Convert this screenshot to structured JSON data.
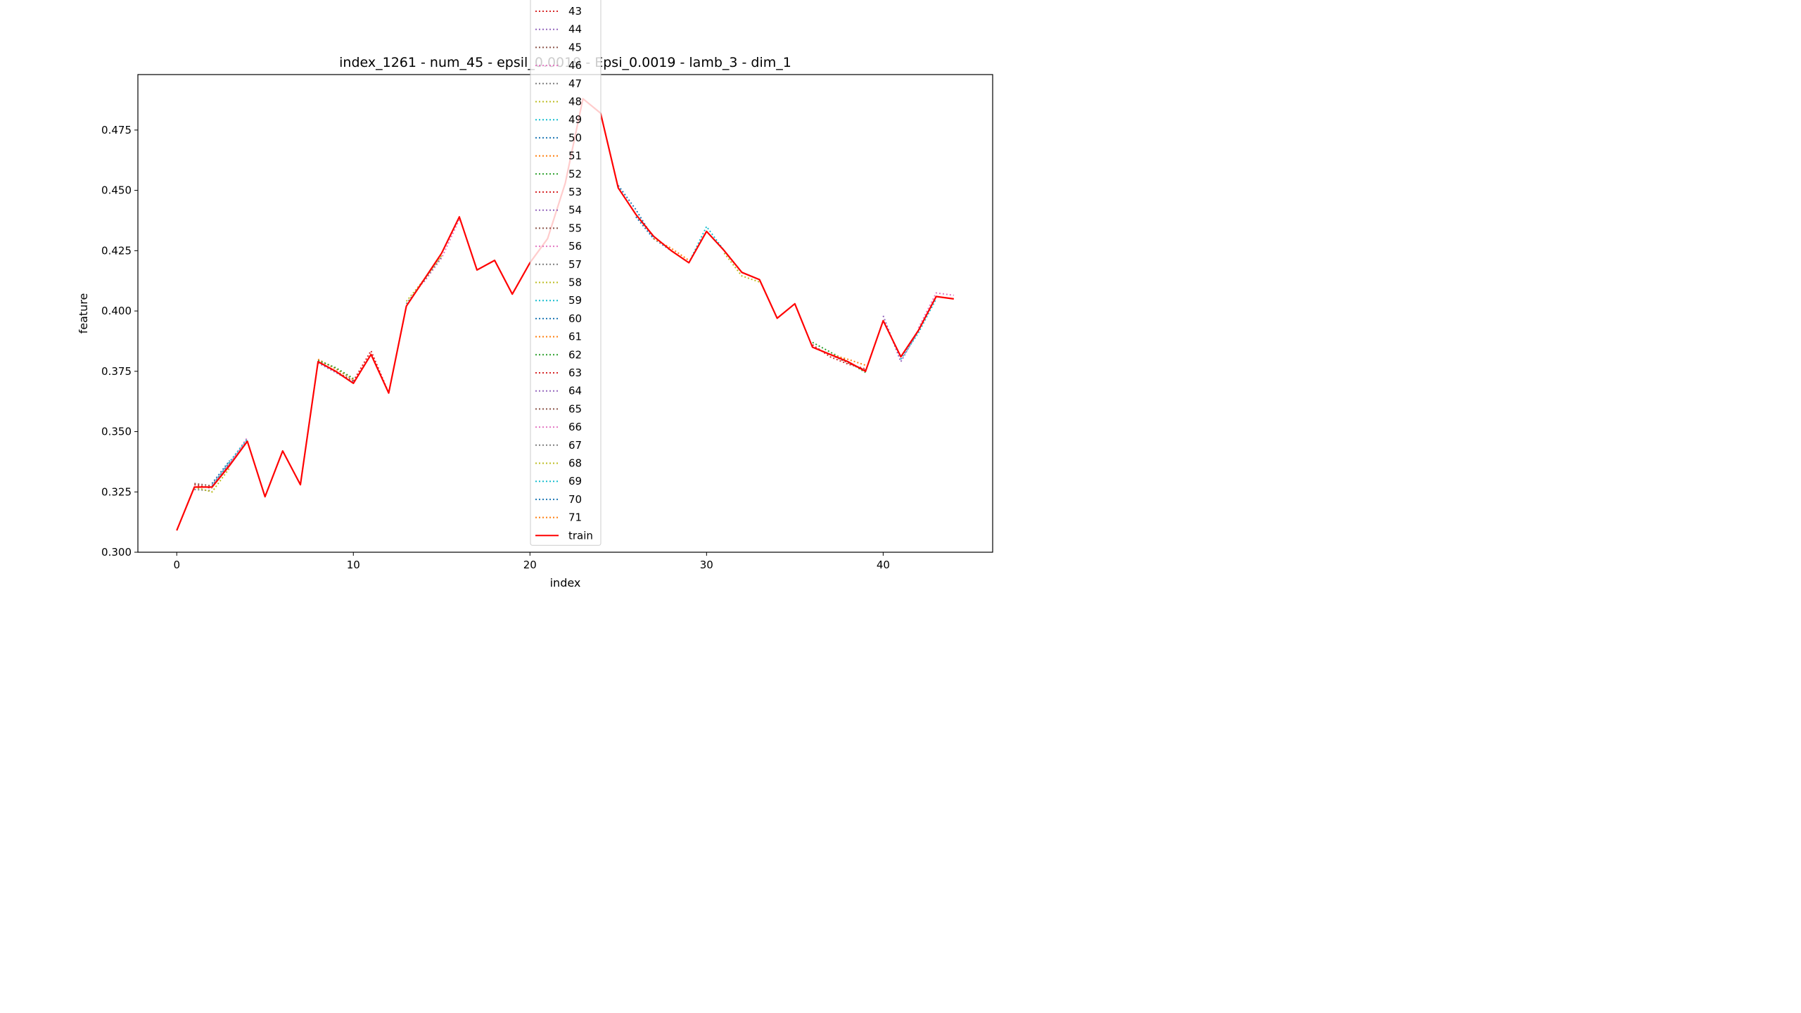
{
  "chart_data": {
    "type": "line",
    "title": "index_1261 - num_45 - epsil_0.0019 - Epsi_0.0019 - lamb_3 - dim_1",
    "xlabel": "index",
    "ylabel": "feature",
    "xlim": [
      -2.2,
      46.2
    ],
    "ylim": [
      0.3,
      0.498
    ],
    "xticks": [
      0,
      10,
      20,
      30,
      40
    ],
    "yticks": [
      0.3,
      0.325,
      0.35,
      0.375,
      0.4,
      0.425,
      0.45,
      0.475
    ],
    "ytick_labels": [
      "0.300",
      "0.325",
      "0.350",
      "0.375",
      "0.400",
      "0.425",
      "0.450",
      "0.475"
    ],
    "legend_position": "top-center",
    "train": {
      "name": "train",
      "color": "#ff0000",
      "x": [
        0,
        1,
        2,
        3,
        4,
        5,
        6,
        7,
        8,
        9,
        10,
        11,
        12,
        13,
        14,
        15,
        16,
        17,
        18,
        19,
        20,
        21,
        22,
        23,
        24,
        25,
        26,
        27,
        28,
        29,
        30,
        31,
        32,
        33,
        34,
        35,
        36,
        37,
        38,
        39,
        40,
        41,
        42,
        43,
        44
      ],
      "values": [
        0.309,
        0.327,
        0.327,
        0.336,
        0.346,
        0.323,
        0.342,
        0.328,
        0.379,
        0.375,
        0.37,
        0.382,
        0.366,
        0.402,
        0.413,
        0.424,
        0.439,
        0.417,
        0.421,
        0.407,
        0.42,
        0.43,
        0.453,
        0.488,
        0.482,
        0.451,
        0.44,
        0.431,
        0.425,
        0.42,
        0.433,
        0.425,
        0.416,
        0.413,
        0.397,
        0.403,
        0.385,
        0.382,
        0.379,
        0.375,
        0.396,
        0.381,
        0.392,
        0.406,
        0.405
      ]
    },
    "prediction_series": [
      {
        "name": "43",
        "color": "#d62728",
        "start": 1,
        "values": [
          0.328,
          0.3265
        ]
      },
      {
        "name": "44",
        "color": "#9467bd",
        "start": 2,
        "values": [
          0.327,
          0.3365,
          0.3465
        ]
      },
      {
        "name": "45",
        "color": "#8c564b",
        "start": 1,
        "values": [
          0.3285,
          0.3275,
          0.337
        ]
      },
      {
        "name": "46",
        "color": "#e377c2",
        "start": 2,
        "values": [
          0.328,
          0.337,
          0.3475
        ]
      },
      {
        "name": "47",
        "color": "#7f7f7f",
        "start": 1,
        "values": [
          0.326,
          0.3255
        ]
      },
      {
        "name": "48",
        "color": "#bcbd22",
        "start": 1,
        "values": [
          0.327,
          0.325,
          0.335
        ]
      },
      {
        "name": "49",
        "color": "#17becf",
        "start": 2,
        "values": [
          0.3275,
          0.3375,
          0.347
        ]
      },
      {
        "name": "50",
        "color": "#1f77b4",
        "start": 2,
        "values": [
          0.3285,
          0.338
        ]
      },
      {
        "name": "51",
        "color": "#ff7f0e",
        "start": 8,
        "values": [
          0.38,
          0.376,
          0.3715
        ]
      },
      {
        "name": "52",
        "color": "#2ca02c",
        "start": 8,
        "values": [
          0.3795,
          0.3765,
          0.372
        ]
      },
      {
        "name": "53",
        "color": "#d62728",
        "start": 10,
        "values": [
          0.371,
          0.3835,
          0.366
        ]
      },
      {
        "name": "54",
        "color": "#9467bd",
        "start": 8,
        "values": [
          0.3785,
          0.3745,
          0.3705
        ]
      },
      {
        "name": "55",
        "color": "#8c564b",
        "start": 8,
        "values": [
          0.379,
          0.375,
          0.371
        ]
      },
      {
        "name": "56",
        "color": "#e377c2",
        "start": 14,
        "values": [
          0.412,
          0.422,
          0.438
        ]
      },
      {
        "name": "57",
        "color": "#7f7f7f",
        "start": 13,
        "values": [
          0.403,
          0.4125,
          0.4225
        ]
      },
      {
        "name": "58",
        "color": "#bcbd22",
        "start": 13,
        "values": [
          0.404,
          0.413,
          0.423
        ]
      },
      {
        "name": "59",
        "color": "#17becf",
        "start": 29,
        "values": [
          0.42,
          0.435,
          0.425
        ]
      },
      {
        "name": "60",
        "color": "#1f77b4",
        "start": 26,
        "values": [
          0.439,
          0.43,
          0.425
        ]
      },
      {
        "name": "61",
        "color": "#ff7f0e",
        "start": 27,
        "values": [
          0.43,
          0.426,
          0.421
        ]
      },
      {
        "name": "62",
        "color": "#2ca02c",
        "start": 36,
        "values": [
          0.387,
          0.383,
          0.379,
          0.3745
        ]
      },
      {
        "name": "63",
        "color": "#d62728",
        "start": 36,
        "values": [
          0.386,
          0.381,
          0.378,
          0.376
        ]
      },
      {
        "name": "64",
        "color": "#9467bd",
        "start": 40,
        "values": [
          0.398,
          0.379,
          0.392,
          0.406
        ]
      },
      {
        "name": "65",
        "color": "#8c564b",
        "start": 36,
        "values": [
          0.385,
          0.382,
          0.3785,
          0.3755
        ]
      },
      {
        "name": "66",
        "color": "#e377c2",
        "start": 42,
        "values": [
          0.393,
          0.4075,
          0.4065
        ]
      },
      {
        "name": "67",
        "color": "#7f7f7f",
        "start": 31,
        "values": [
          0.425,
          0.416,
          0.413
        ]
      },
      {
        "name": "68",
        "color": "#bcbd22",
        "start": 31,
        "values": [
          0.424,
          0.4145,
          0.412
        ]
      },
      {
        "name": "69",
        "color": "#17becf",
        "start": 41,
        "values": [
          0.38,
          0.391,
          0.405
        ]
      },
      {
        "name": "70",
        "color": "#1f77b4",
        "start": 25,
        "values": [
          0.452,
          0.442,
          0.43
        ]
      },
      {
        "name": "71",
        "color": "#ff7f0e",
        "start": 37,
        "values": [
          0.382,
          0.38,
          0.3775
        ]
      }
    ]
  }
}
